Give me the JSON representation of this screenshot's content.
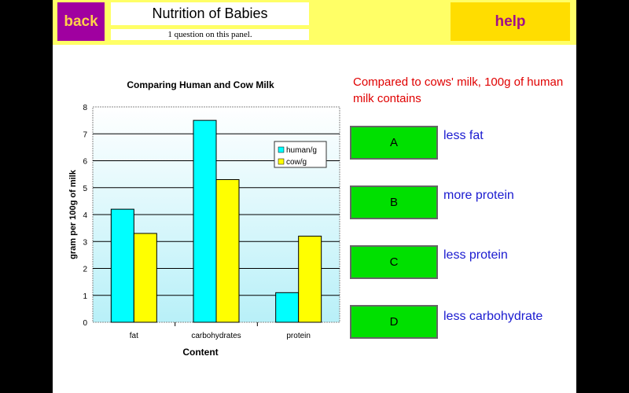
{
  "header": {
    "back_label": "back",
    "title": "Nutrition of Babies",
    "subtitle": "1 question on this panel.",
    "help_label": "help"
  },
  "question": {
    "text": "Compared to cows' milk, 100g of human milk contains",
    "options": [
      {
        "letter": "A",
        "text": "less fat"
      },
      {
        "letter": "B",
        "text": "more protein"
      },
      {
        "letter": "C",
        "text": "less protein"
      },
      {
        "letter": "D",
        "text": "less carbohydrate"
      }
    ]
  },
  "colors": {
    "human": "#00ffff",
    "cow": "#ffff00"
  },
  "chart_data": {
    "type": "bar",
    "title": "Comparing Human and Cow Milk",
    "xlabel": "Content",
    "ylabel": "gram per 100g of milk",
    "categories": [
      "fat",
      "carbohydrates",
      "protein"
    ],
    "series": [
      {
        "name": "human/g",
        "values": [
          4.2,
          7.5,
          1.1
        ]
      },
      {
        "name": "cow/g",
        "values": [
          3.3,
          5.3,
          3.2
        ]
      }
    ],
    "ylim": [
      0,
      8
    ],
    "yticks": [
      "0",
      "1",
      "2",
      "3",
      "4",
      "5",
      "6",
      "7",
      "8"
    ],
    "grid": true,
    "legend": "top-right"
  }
}
